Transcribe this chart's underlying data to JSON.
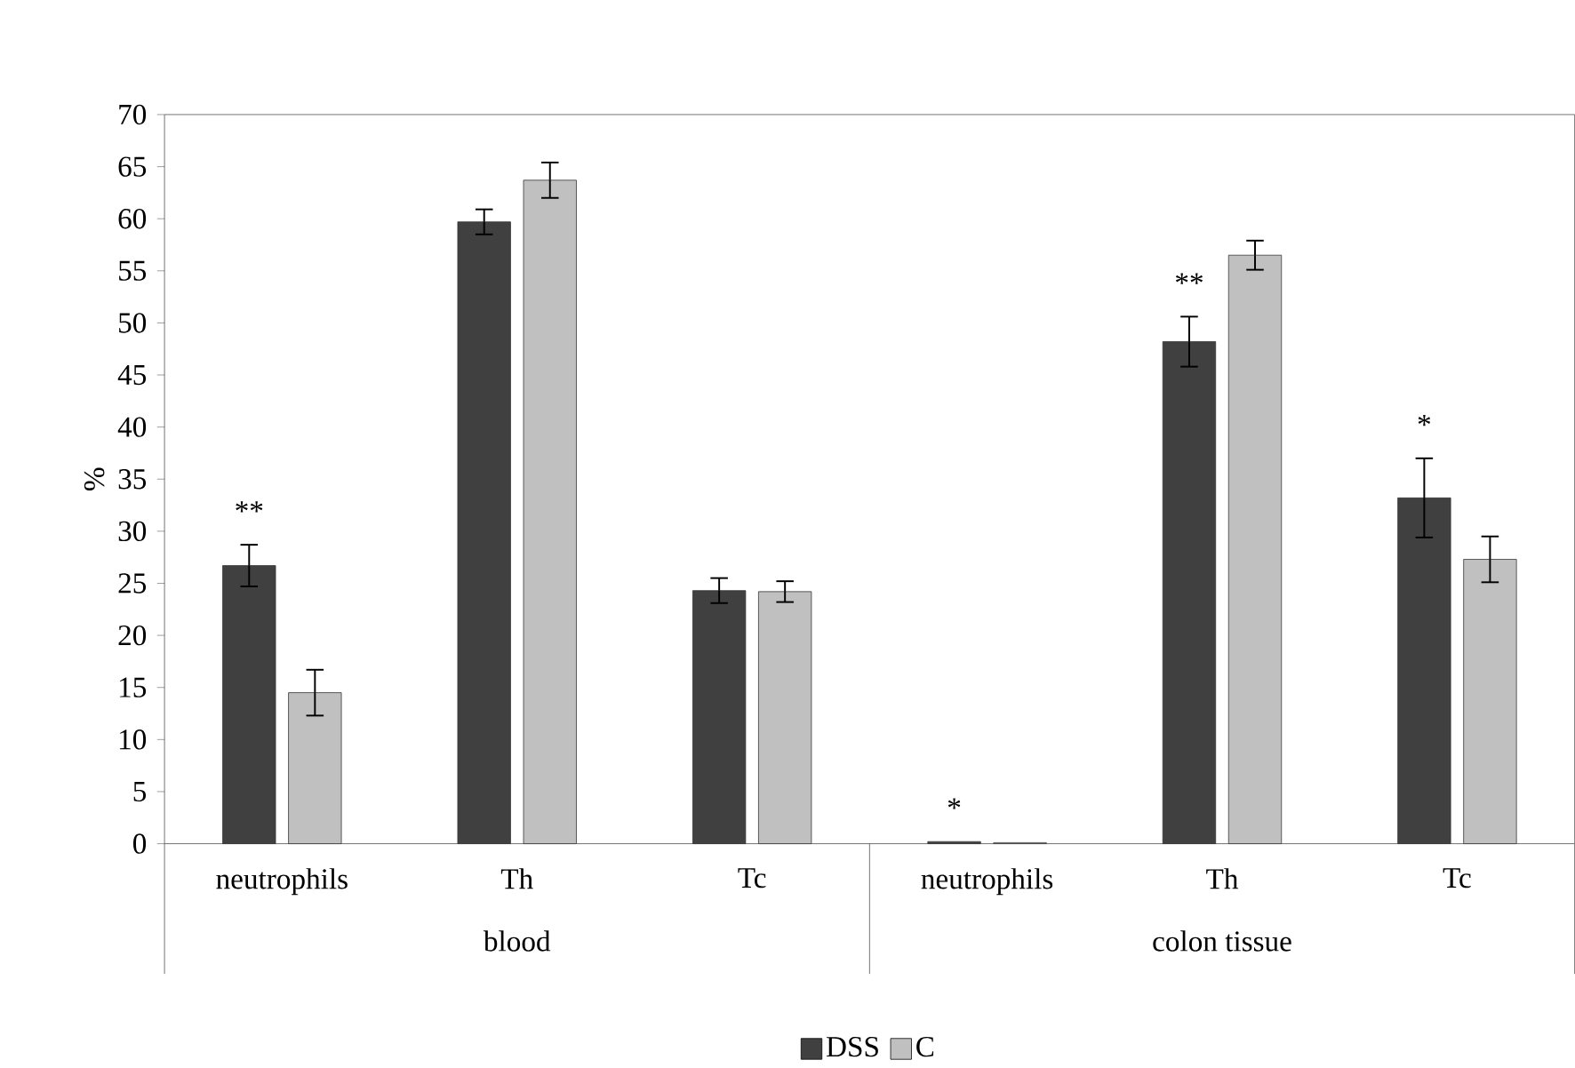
{
  "chart_data": {
    "type": "bar",
    "ylabel": "%",
    "categories": [
      "neutrophils",
      "Th",
      "Tc",
      "neutrophils",
      "Th",
      "Tc"
    ],
    "series": [
      {
        "name": "DSS",
        "color": "#404040",
        "values": [
          26.7,
          59.7,
          24.3,
          0.2,
          48.2,
          33.2
        ],
        "errors": [
          2.0,
          1.2,
          1.2,
          null,
          2.4,
          3.8
        ],
        "value_labels": [
          "**",
          null,
          null,
          "*",
          "**",
          "*"
        ]
      },
      {
        "name": "C",
        "color": "#c0c0c0",
        "values": [
          14.5,
          63.7,
          24.2,
          0.1,
          56.5,
          27.3
        ],
        "errors": [
          2.2,
          1.7,
          1.0,
          null,
          1.4,
          2.2
        ]
      }
    ],
    "annotations": [
      "blood",
      "colon tissue"
    ],
    "ylim": [
      0,
      70
    ],
    "yticks": [
      0,
      5,
      10,
      15,
      20,
      25,
      30,
      35,
      40,
      45,
      50,
      55,
      60,
      65,
      70
    ],
    "legend": "bottom"
  }
}
